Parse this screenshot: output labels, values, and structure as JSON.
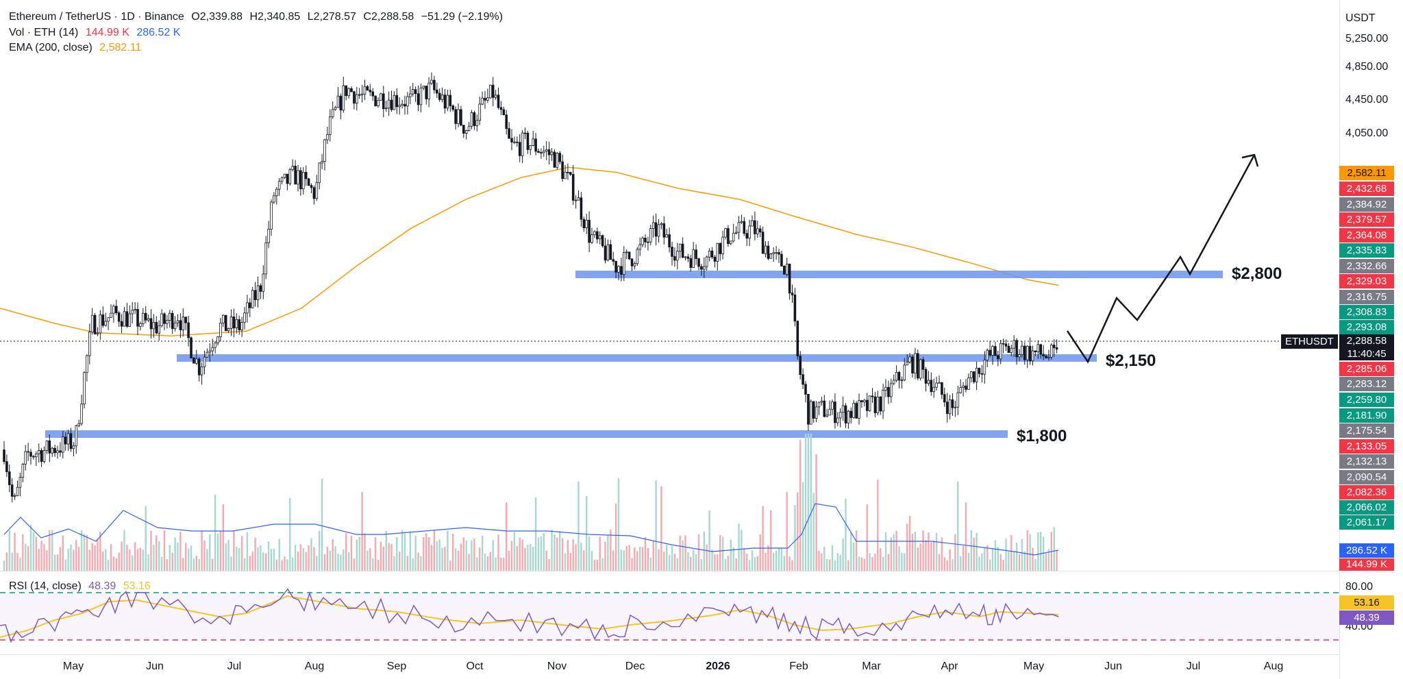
{
  "header": {
    "symbol": "Ethereum / TetherUS · 1D · Binance",
    "open": "O2,339.88",
    "high": "H2,340.85",
    "low": "L2,278.57",
    "close": "C2,288.58",
    "change": "−51.29 (−2.19%)",
    "vol_label": "Vol · ETH (14)",
    "vol_value1": "144.99 K",
    "vol_value2": "286.52 K",
    "ema_label": "EMA (200, close)",
    "ema_value": "2,582.11",
    "rsi_label": "RSI (14, close)",
    "rsi_value": "48.39",
    "rsi_ma_value": "53.16"
  },
  "axis": {
    "currency": "USDT",
    "price_ticks": [
      "5,250.00",
      "4,850.00",
      "4,450.00",
      "4,050.00"
    ],
    "rsi_ticks": [
      "80.00",
      "40.00"
    ],
    "months": [
      "May",
      "Jun",
      "Jul",
      "Aug",
      "Sep",
      "Oct",
      "Nov",
      "Dec",
      "2026",
      "Feb",
      "Mar",
      "Apr",
      "May",
      "Jun",
      "Jul",
      "Aug"
    ]
  },
  "price_labels": [
    {
      "text": "2,582.11",
      "color": "#ff9800"
    },
    {
      "text": "2,432.68",
      "color": "#f23645"
    },
    {
      "text": "2,384.92",
      "color": "#787b86"
    },
    {
      "text": "2,379.57",
      "color": "#f23645"
    },
    {
      "text": "2,364.08",
      "color": "#f23645"
    },
    {
      "text": "2,335.83",
      "color": "#089981"
    },
    {
      "text": "2,332.66",
      "color": "#787b86"
    },
    {
      "text": "2,329.03",
      "color": "#f23645"
    },
    {
      "text": "2,316.75",
      "color": "#787b86"
    },
    {
      "text": "2,308.83",
      "color": "#089981"
    },
    {
      "text": "2,293.08",
      "color": "#089981"
    },
    {
      "text": "2,285.06",
      "color": "#f23645"
    },
    {
      "text": "2,283.12",
      "color": "#787b86"
    },
    {
      "text": "2,259.80",
      "color": "#089981"
    },
    {
      "text": "2,181.90",
      "color": "#089981"
    },
    {
      "text": "2,175.54",
      "color": "#787b86"
    },
    {
      "text": "2,133.05",
      "color": "#f23645"
    },
    {
      "text": "2,132.13",
      "color": "#787b86"
    },
    {
      "text": "2,090.54",
      "color": "#787b86"
    },
    {
      "text": "2,082.36",
      "color": "#f23645"
    },
    {
      "text": "2,066.02",
      "color": "#089981"
    },
    {
      "text": "2,061.17",
      "color": "#089981"
    }
  ],
  "last_price": {
    "symbol": "ETHUSDT",
    "price": "2,288.58",
    "countdown": "11:40:45"
  },
  "vol_badges": [
    {
      "text": "286.52 K",
      "color": "#2962ff"
    },
    {
      "text": "144.99 K",
      "color": "#f23645"
    }
  ],
  "rsi_badges": [
    {
      "text": "53.16",
      "color": "#f7c325"
    },
    {
      "text": "48.39",
      "color": "#7e57c2"
    }
  ],
  "zones": [
    {
      "label": "$2,800",
      "price": 2800
    },
    {
      "label": "$2,150",
      "price": 2150
    },
    {
      "label": "$1,800",
      "price": 1800
    }
  ],
  "chart_data": {
    "type": "candlestick",
    "title": "Ethereum / TetherUS · 1D · Binance",
    "price_scale": "log",
    "x": [
      "2025-04",
      "2025-05",
      "2025-06",
      "2025-07",
      "2025-08",
      "2025-09",
      "2025-10",
      "2025-11",
      "2025-12",
      "2026-01",
      "2026-02",
      "2026-03",
      "2026-04",
      "2026-05"
    ],
    "series": [
      {
        "name": "Ethereum / TetherUS",
        "values": [
          1800,
          2550,
          2500,
          3700,
          4400,
          4350,
          4200,
          3100,
          3000,
          3000,
          2000,
          2100,
          2300,
          2288.58
        ]
      },
      {
        "name": "EMA (200, close)",
        "values": [
          2600,
          2430,
          2410,
          2500,
          3100,
          3500,
          3750,
          3420,
          3350,
          3330,
          3100,
          2950,
          2800,
          2582.11
        ]
      }
    ],
    "resistance_levels": [
      2800,
      2150,
      1800
    ],
    "projection": [
      2288.58,
      2150,
      2550,
      2400,
      2850,
      2700,
      4250
    ],
    "rsi": {
      "name": "RSI (14, close)",
      "last": 48.39,
      "ma_last": 53.16,
      "levels": [
        80,
        40
      ]
    }
  },
  "colors": {
    "up": "#089981",
    "down": "#f23645",
    "ema": "#ff9800",
    "zone": "#6d95ef",
    "rsi": "#7e57c2",
    "rsi_ma": "#f7c325"
  }
}
